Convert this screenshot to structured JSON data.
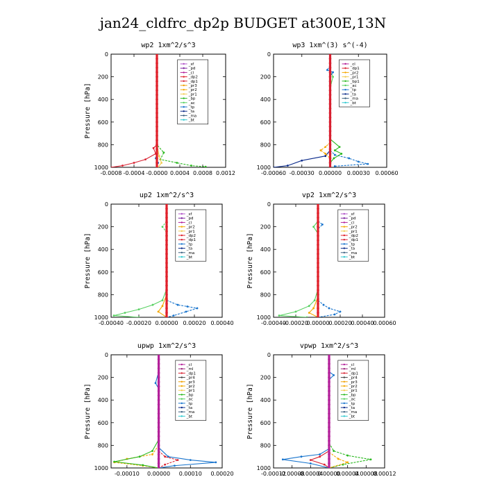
{
  "figure": {
    "title": "jan24_cldfrc_dp2p  BUDGET at300E,13N"
  },
  "colors": {
    "_sf": "#b054c8",
    "_pd": "#7a1fa0",
    "_cl": "#b3209a",
    "_ml": "#9a1f7a",
    "_dp2": "#e0202a",
    "_dp1": "#d82030",
    "_pr3": "#f0a000",
    "_pr2": "#f5a800",
    "_pr1": "#f2cc50",
    "_bp": "#29b81e",
    "_bp1": "#29b81e",
    "_ac": "#56d060",
    "_tp": "#1874cd",
    "_ta": "#0a2a8a",
    "_ma": "#3a6080",
    "_bt": "#2cc8d0"
  },
  "chart_data": [
    {
      "type": "line",
      "title": "wp2  1xm^2/s^3",
      "ylabel": "Pressure [hPa]",
      "xlim": [
        -0.0008,
        0.0012
      ],
      "ylim": [
        1000,
        0
      ],
      "xticks": [
        -0.0008,
        -0.0004,
        0.0,
        0.0004,
        0.0008,
        0.0012
      ],
      "xticklabels": [
        "-0.0008",
        "-0.0004",
        "-0.0000",
        "0.0004",
        "0.0008",
        "0.0012"
      ],
      "yticks": [
        0,
        200,
        400,
        600,
        800,
        1000
      ],
      "yticklabels": [
        "0",
        "200",
        "400",
        "600",
        "800",
        "1000"
      ],
      "legend": [
        "_sf",
        "_pd",
        "_cl",
        "_dp2",
        "_dp1",
        "_pr3",
        "_pr2",
        "_pr1",
        "_bp",
        "_ac",
        "_tp",
        "_ta",
        "_ma",
        "_bt"
      ],
      "series": [
        {
          "name": "_dp1",
          "points": [
            [
              0,
              700
            ],
            [
              0,
              800
            ],
            [
              -6e-05,
              830
            ],
            [
              -2e-05,
              880
            ],
            [
              -0.0002,
              930
            ],
            [
              -0.0004,
              960
            ],
            [
              -0.0006,
              985
            ],
            [
              -0.0008,
              1000
            ]
          ]
        },
        {
          "name": "_bp",
          "points": [
            [
              0,
              700
            ],
            [
              0,
              800
            ],
            [
              0.00012,
              870
            ],
            [
              6e-05,
              930
            ],
            [
              0.00035,
              960
            ],
            [
              0.0006,
              985
            ],
            [
              0.00085,
              995
            ]
          ]
        },
        {
          "name": "_pr1",
          "points": [
            [
              0,
              800
            ],
            [
              4e-05,
              900
            ],
            [
              8e-05,
              960
            ],
            [
              2e-05,
              1000
            ]
          ]
        },
        {
          "name": "_tp",
          "points": [
            [
              0,
              850
            ],
            [
              -2e-05,
              920
            ],
            [
              2e-05,
              960
            ],
            [
              0,
              1000
            ]
          ]
        },
        {
          "name": "_sf",
          "points": [
            [
              0,
              0
            ],
            [
              -3e-06,
              150
            ],
            [
              3e-06,
              200
            ],
            [
              0,
              1000
            ]
          ]
        },
        {
          "name": "_dp2",
          "points": [
            [
              0,
              0
            ],
            [
              0,
              1000
            ]
          ]
        }
      ]
    },
    {
      "type": "line",
      "title": "wp3  1xm^(3) s^(-4)",
      "ylabel": "",
      "xlim": [
        -0.0006,
        0.0006
      ],
      "ylim": [
        1000,
        0
      ],
      "xticks": [
        -0.0006,
        -0.0003,
        0.0,
        0.0003,
        0.0006
      ],
      "xticklabels": [
        "-0.00060",
        "-0.00030",
        "0.00000",
        "0.00030",
        "0.00060"
      ],
      "yticks": [
        0,
        200,
        400,
        600,
        800,
        1000
      ],
      "yticklabels": [
        "0",
        "200",
        "400",
        "600",
        "800",
        "1000"
      ],
      "legend": [
        "_cl",
        "_dp1",
        "_pr2",
        "_pr1",
        "_bp1",
        "_ac",
        "_tp",
        "_ta",
        "_ma",
        "_bt"
      ],
      "series": [
        {
          "name": "_ta",
          "points": [
            [
              0,
              850
            ],
            [
              -5e-05,
              900
            ],
            [
              -0.0003,
              940
            ],
            [
              -0.00045,
              985
            ],
            [
              -0.0006,
              1000
            ]
          ]
        },
        {
          "name": "_tp",
          "points": [
            [
              0,
              850
            ],
            [
              5e-05,
              890
            ],
            [
              0.0002,
              920
            ],
            [
              0.0003,
              950
            ],
            [
              0.0004,
              970
            ],
            [
              5e-05,
              990
            ]
          ]
        },
        {
          "name": "_bp1",
          "points": [
            [
              0,
              750
            ],
            [
              0.0001,
              820
            ],
            [
              5e-05,
              850
            ],
            [
              0.00012,
              880
            ],
            [
              4e-05,
              920
            ],
            [
              0,
              960
            ]
          ]
        },
        {
          "name": "_pr2",
          "points": [
            [
              0,
              780
            ],
            [
              -5e-05,
              820
            ],
            [
              -0.0001,
              850
            ],
            [
              -5e-05,
              880
            ],
            [
              0,
              920
            ]
          ]
        },
        {
          "name": "_ac",
          "points": [
            [
              0,
              150
            ],
            [
              3e-05,
              200
            ],
            [
              0,
              300
            ],
            [
              0,
              1000
            ]
          ]
        },
        {
          "name": "_tp",
          "points": [
            [
              0,
              100
            ],
            [
              -3e-05,
              140
            ],
            [
              3e-05,
              160
            ],
            [
              0,
              200
            ]
          ]
        },
        {
          "name": "_dp1",
          "points": [
            [
              0,
              0
            ],
            [
              0,
              1000
            ]
          ]
        }
      ]
    },
    {
      "type": "line",
      "title": "up2  1xm^2/s^3",
      "ylabel": "Pressure [hPa]",
      "xlim": [
        -0.0004,
        0.0004
      ],
      "ylim": [
        1000,
        0
      ],
      "xticks": [
        -0.0004,
        -0.0002,
        0.0,
        0.0002,
        0.0004
      ],
      "xticklabels": [
        "-0.00040",
        "-0.00020",
        "0.00000",
        "0.00020",
        "0.00040"
      ],
      "yticks": [
        0,
        200,
        400,
        600,
        800,
        1000
      ],
      "yticklabels": [
        "0",
        "200",
        "400",
        "600",
        "800",
        "1000"
      ],
      "legend": [
        "_sf",
        "_pd",
        "_cl",
        "_pr2",
        "_pr1",
        "_dp2",
        "_dp1",
        "_tp",
        "_ta",
        "_ma",
        "_bt"
      ],
      "series": [
        {
          "name": "_ac",
          "points": [
            [
              0,
              750
            ],
            [
              -3e-05,
              850
            ],
            [
              -0.0001,
              890
            ],
            [
              -0.0002,
              930
            ],
            [
              -0.0003,
              960
            ],
            [
              -0.00038,
              985
            ],
            [
              -0.0002,
              1000
            ]
          ]
        },
        {
          "name": "_tp",
          "points": [
            [
              0,
              850
            ],
            [
              8e-05,
              890
            ],
            [
              0.00015,
              905
            ],
            [
              0.00022,
              920
            ],
            [
              0.00014,
              950
            ],
            [
              5e-05,
              985
            ],
            [
              0,
              1000
            ]
          ]
        },
        {
          "name": "_pr2",
          "points": [
            [
              0,
              800
            ],
            [
              -3e-05,
              900
            ],
            [
              -6e-05,
              950
            ],
            [
              0,
              1000
            ]
          ]
        },
        {
          "name": "_ac",
          "points": [
            [
              0,
              150
            ],
            [
              -3e-05,
              200
            ],
            [
              0,
              250
            ]
          ]
        },
        {
          "name": "_dp2",
          "points": [
            [
              0,
              0
            ],
            [
              0,
              1000
            ]
          ]
        }
      ]
    },
    {
      "type": "line",
      "title": "vp2  1xm^2/s^3",
      "ylabel": "Pressure [hPa]",
      "xlim": [
        -0.0004,
        0.0006
      ],
      "ylim": [
        1000,
        0
      ],
      "xticks": [
        -0.0004,
        -0.0002,
        0.0,
        0.0002,
        0.0004,
        0.0006
      ],
      "xticklabels": [
        "-0.00040",
        "-0.00020",
        "0.00000",
        "0.00020",
        "0.00040",
        "0.00060"
      ],
      "yticks": [
        0,
        200,
        400,
        600,
        800,
        1000
      ],
      "yticklabels": [
        "0",
        "200",
        "400",
        "600",
        "800",
        "1000"
      ],
      "legend": [
        "_sf",
        "_pd",
        "_cl",
        "_pr2",
        "_pr1",
        "_dp2",
        "_dp1",
        "_tp",
        "_ta",
        "_ma",
        "_bt"
      ],
      "series": [
        {
          "name": "_ac",
          "points": [
            [
              0,
              750
            ],
            [
              -3e-05,
              850
            ],
            [
              -8e-05,
              900
            ],
            [
              -0.0002,
              950
            ],
            [
              -0.00035,
              985
            ],
            [
              -0.0001,
              1000
            ]
          ]
        },
        {
          "name": "_tp",
          "points": [
            [
              0,
              850
            ],
            [
              5e-05,
              890
            ],
            [
              0.0001,
              920
            ],
            [
              0.0002,
              950
            ],
            [
              0.00015,
              975
            ],
            [
              0,
              1000
            ]
          ]
        },
        {
          "name": "_pr2",
          "points": [
            [
              0,
              820
            ],
            [
              -4e-05,
              920
            ],
            [
              -8e-05,
              960
            ],
            [
              0,
              1000
            ]
          ]
        },
        {
          "name": "_tp",
          "points": [
            [
              0,
              150
            ],
            [
              4e-05,
              180
            ],
            [
              0,
              220
            ]
          ]
        },
        {
          "name": "_ac",
          "points": [
            [
              0,
              150
            ],
            [
              -4e-05,
              200
            ],
            [
              0,
              260
            ]
          ]
        },
        {
          "name": "_dp2",
          "points": [
            [
              0,
              0
            ],
            [
              0,
              1000
            ]
          ]
        }
      ]
    },
    {
      "type": "line",
      "title": "upwp  1xm^2/s^3",
      "ylabel": "Pressure [hPa]",
      "xlim": [
        -0.00015,
        0.0002
      ],
      "ylim": [
        1000,
        0
      ],
      "xticks": [
        -0.0001,
        0.0,
        0.0001,
        0.0002
      ],
      "xticklabels": [
        "-0.00010",
        "0.00000",
        "0.00010",
        "0.00020"
      ],
      "yticks": [
        0,
        200,
        400,
        600,
        800,
        1000
      ],
      "yticklabels": [
        "0",
        "200",
        "400",
        "600",
        "800",
        "1000"
      ],
      "legend": [
        "_cl",
        "_ml",
        "_dp1",
        "_pr4",
        "_pr3",
        "_pr2",
        "_pr1",
        "_bp",
        "_ac",
        "_tp",
        "_ta",
        "_ma",
        "_bt"
      ],
      "series": [
        {
          "name": "_tp",
          "points": [
            [
              0,
              820
            ],
            [
              3e-05,
              900
            ],
            [
              0.0001,
              930
            ],
            [
              0.00018,
              950
            ],
            [
              5e-05,
              980
            ],
            [
              0,
              1000
            ]
          ]
        },
        {
          "name": "_pr2",
          "points": [
            [
              0,
              800
            ],
            [
              -2e-05,
              880
            ],
            [
              -0.0001,
              920
            ],
            [
              -0.00014,
              950
            ],
            [
              -5e-05,
              980
            ],
            [
              0,
              1000
            ]
          ]
        },
        {
          "name": "_bp",
          "points": [
            [
              0,
              750
            ],
            [
              -2e-05,
              850
            ],
            [
              -6e-05,
              900
            ],
            [
              -0.00014,
              945
            ],
            [
              -5e-05,
              975
            ],
            [
              0,
              1000
            ]
          ]
        },
        {
          "name": "_dp1",
          "points": [
            [
              0,
              850
            ],
            [
              2e-05,
              900
            ],
            [
              6e-05,
              930
            ],
            [
              2e-05,
              970
            ],
            [
              0,
              1000
            ]
          ]
        },
        {
          "name": "_tp",
          "points": [
            [
              0,
              150
            ],
            [
              -1e-05,
              250
            ],
            [
              0,
              300
            ]
          ]
        },
        {
          "name": "_cl",
          "points": [
            [
              0,
              0
            ],
            [
              0,
              1000
            ]
          ]
        }
      ]
    },
    {
      "type": "line",
      "title": "vpwp  1xm^2/s^3",
      "ylabel": "Pressure [hPa]",
      "xlim": [
        -0.00012,
        0.00012
      ],
      "ylim": [
        1000,
        0
      ],
      "xticks": [
        -0.00012,
        -8e-05,
        -4e-05,
        0.0,
        4e-05,
        8e-05,
        0.00012
      ],
      "xticklabels": [
        "-0.00012",
        "-0.00008",
        "-0.00004",
        "0.00000",
        "0.00004",
        "0.00008",
        "0.00012"
      ],
      "yticks": [
        0,
        200,
        400,
        600,
        800,
        1000
      ],
      "yticklabels": [
        "0",
        "200",
        "400",
        "600",
        "800",
        "1000"
      ],
      "legend": [
        "_cl",
        "_ml",
        "_dp1",
        "_pr4",
        "_pr3",
        "_pr2",
        "_pr1",
        "_bp",
        "_ac",
        "_tp",
        "_ta",
        "_ma",
        "_bt"
      ],
      "series": [
        {
          "name": "_tp",
          "points": [
            [
              0,
              830
            ],
            [
              -2e-05,
              880
            ],
            [
              -6e-05,
              900
            ],
            [
              -0.0001,
              925
            ],
            [
              -4e-05,
              960
            ],
            [
              0,
              1000
            ]
          ]
        },
        {
          "name": "_bp",
          "points": [
            [
              0,
              780
            ],
            [
              1e-05,
              850
            ],
            [
              4e-05,
              890
            ],
            [
              9e-05,
              925
            ],
            [
              3e-05,
              970
            ],
            [
              0,
              1000
            ]
          ]
        },
        {
          "name": "_dp1",
          "points": [
            [
              0,
              850
            ],
            [
              -2e-05,
              900
            ],
            [
              -4e-05,
              930
            ],
            [
              -1e-05,
              970
            ],
            [
              0,
              1000
            ]
          ]
        },
        {
          "name": "_pr2",
          "points": [
            [
              0,
              860
            ],
            [
              2e-05,
              920
            ],
            [
              4e-05,
              950
            ],
            [
              0,
              1000
            ]
          ]
        },
        {
          "name": "_tp",
          "points": [
            [
              0,
              150
            ],
            [
              1e-05,
              180
            ],
            [
              0,
              220
            ]
          ]
        },
        {
          "name": "_cl",
          "points": [
            [
              0,
              0
            ],
            [
              0,
              1000
            ]
          ]
        }
      ]
    }
  ]
}
